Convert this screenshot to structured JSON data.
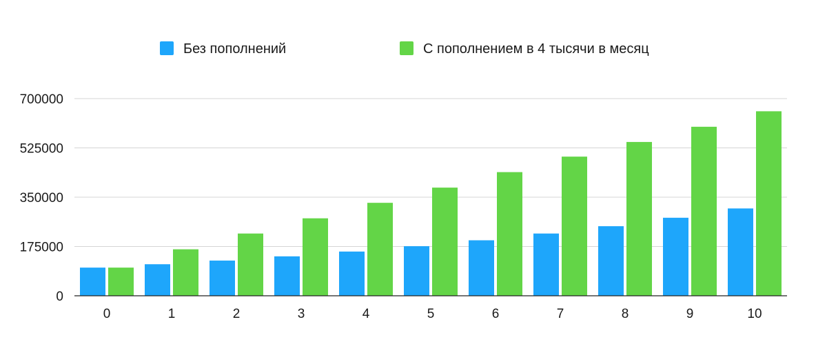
{
  "chart_data": {
    "type": "bar",
    "title": "",
    "xlabel": "",
    "ylabel": "",
    "categories": [
      "0",
      "1",
      "2",
      "3",
      "4",
      "5",
      "6",
      "7",
      "8",
      "9",
      "10"
    ],
    "series": [
      {
        "name": "Без пополнений",
        "color": "#1ea6fb",
        "values": [
          100000,
          112000,
          125000,
          140000,
          157000,
          176000,
          197000,
          221000,
          247000,
          277000,
          310000
        ]
      },
      {
        "name": "С пополнением в 4 тысячи в месяц",
        "color": "#63d547",
        "values": [
          100000,
          165000,
          221000,
          275000,
          330000,
          384000,
          439000,
          494000,
          546000,
          600000,
          655000
        ]
      }
    ],
    "ylim": [
      0,
      700000
    ],
    "yticks": [
      "0",
      "175000",
      "350000",
      "525000",
      "700000"
    ],
    "grid": true,
    "legend_position": "top"
  }
}
